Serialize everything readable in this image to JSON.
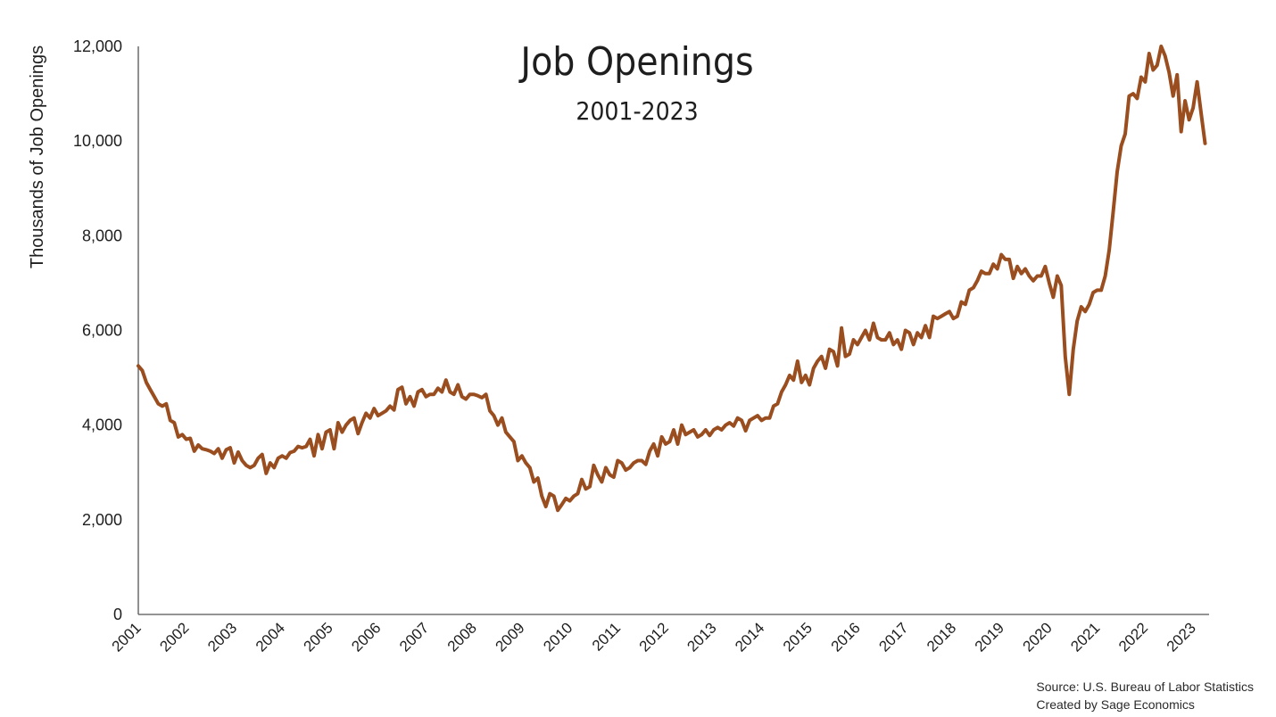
{
  "chart_data": {
    "type": "line",
    "title": "Job Openings",
    "subtitle": "2001-2023",
    "xlabel": "",
    "ylabel": "Thousands of Job Openings",
    "ylim": [
      0,
      12000
    ],
    "xlim": [
      "2001-01",
      "2023-05"
    ],
    "yticks": [
      "0",
      "2,000",
      "4,000",
      "6,000",
      "8,000",
      "10,000",
      "12,000"
    ],
    "xticks": [
      "2001",
      "2002",
      "2003",
      "2004",
      "2005",
      "2006",
      "2007",
      "2008",
      "2009",
      "2010",
      "2011",
      "2012",
      "2013",
      "2014",
      "2015",
      "2016",
      "2017",
      "2018",
      "2019",
      "2020",
      "2021",
      "2022",
      "2023"
    ],
    "grid": false,
    "line_color": "#9a4e1f",
    "series": [
      {
        "name": "",
        "points": [
          [
            "2001-01",
            5250
          ],
          [
            "2001-02",
            5150
          ],
          [
            "2001-03",
            4900
          ],
          [
            "2001-04",
            4750
          ],
          [
            "2001-05",
            4600
          ],
          [
            "2001-06",
            4450
          ],
          [
            "2001-07",
            4400
          ],
          [
            "2001-08",
            4450
          ],
          [
            "2001-09",
            4100
          ],
          [
            "2001-10",
            4050
          ],
          [
            "2001-11",
            3750
          ],
          [
            "2001-12",
            3800
          ],
          [
            "2002-01",
            3700
          ],
          [
            "2002-02",
            3720
          ],
          [
            "2002-03",
            3450
          ],
          [
            "2002-04",
            3580
          ],
          [
            "2002-05",
            3500
          ],
          [
            "2002-06",
            3480
          ],
          [
            "2002-07",
            3450
          ],
          [
            "2002-08",
            3400
          ],
          [
            "2002-09",
            3500
          ],
          [
            "2002-10",
            3300
          ],
          [
            "2002-11",
            3480
          ],
          [
            "2002-12",
            3520
          ],
          [
            "2003-01",
            3200
          ],
          [
            "2003-02",
            3430
          ],
          [
            "2003-03",
            3250
          ],
          [
            "2003-04",
            3150
          ],
          [
            "2003-05",
            3100
          ],
          [
            "2003-06",
            3150
          ],
          [
            "2003-07",
            3300
          ],
          [
            "2003-08",
            3380
          ],
          [
            "2003-09",
            2980
          ],
          [
            "2003-10",
            3200
          ],
          [
            "2003-11",
            3100
          ],
          [
            "2003-12",
            3300
          ],
          [
            "2004-01",
            3350
          ],
          [
            "2004-02",
            3300
          ],
          [
            "2004-03",
            3420
          ],
          [
            "2004-04",
            3450
          ],
          [
            "2004-05",
            3550
          ],
          [
            "2004-06",
            3520
          ],
          [
            "2004-07",
            3550
          ],
          [
            "2004-08",
            3700
          ],
          [
            "2004-09",
            3350
          ],
          [
            "2004-10",
            3800
          ],
          [
            "2004-11",
            3500
          ],
          [
            "2004-12",
            3850
          ],
          [
            "2005-01",
            3900
          ],
          [
            "2005-02",
            3500
          ],
          [
            "2005-03",
            4050
          ],
          [
            "2005-04",
            3850
          ],
          [
            "2005-05",
            4000
          ],
          [
            "2005-06",
            4100
          ],
          [
            "2005-07",
            4150
          ],
          [
            "2005-08",
            3820
          ],
          [
            "2005-09",
            4050
          ],
          [
            "2005-10",
            4250
          ],
          [
            "2005-11",
            4150
          ],
          [
            "2005-12",
            4350
          ],
          [
            "2006-01",
            4200
          ],
          [
            "2006-02",
            4250
          ],
          [
            "2006-03",
            4300
          ],
          [
            "2006-04",
            4400
          ],
          [
            "2006-05",
            4320
          ],
          [
            "2006-06",
            4750
          ],
          [
            "2006-07",
            4800
          ],
          [
            "2006-08",
            4450
          ],
          [
            "2006-09",
            4600
          ],
          [
            "2006-10",
            4400
          ],
          [
            "2006-11",
            4700
          ],
          [
            "2006-12",
            4750
          ],
          [
            "2007-01",
            4600
          ],
          [
            "2007-02",
            4650
          ],
          [
            "2007-03",
            4650
          ],
          [
            "2007-04",
            4780
          ],
          [
            "2007-05",
            4700
          ],
          [
            "2007-06",
            4950
          ],
          [
            "2007-07",
            4700
          ],
          [
            "2007-08",
            4650
          ],
          [
            "2007-09",
            4850
          ],
          [
            "2007-10",
            4600
          ],
          [
            "2007-11",
            4550
          ],
          [
            "2007-12",
            4650
          ],
          [
            "2008-01",
            4650
          ],
          [
            "2008-02",
            4620
          ],
          [
            "2008-03",
            4580
          ],
          [
            "2008-04",
            4650
          ],
          [
            "2008-05",
            4300
          ],
          [
            "2008-06",
            4200
          ],
          [
            "2008-07",
            4000
          ],
          [
            "2008-08",
            4150
          ],
          [
            "2008-09",
            3850
          ],
          [
            "2008-10",
            3750
          ],
          [
            "2008-11",
            3650
          ],
          [
            "2008-12",
            3250
          ],
          [
            "2009-01",
            3350
          ],
          [
            "2009-02",
            3200
          ],
          [
            "2009-03",
            3100
          ],
          [
            "2009-04",
            2800
          ],
          [
            "2009-05",
            2880
          ],
          [
            "2009-06",
            2500
          ],
          [
            "2009-07",
            2280
          ],
          [
            "2009-08",
            2550
          ],
          [
            "2009-09",
            2500
          ],
          [
            "2009-10",
            2200
          ],
          [
            "2009-11",
            2320
          ],
          [
            "2009-12",
            2450
          ],
          [
            "2010-01",
            2400
          ],
          [
            "2010-02",
            2500
          ],
          [
            "2010-03",
            2550
          ],
          [
            "2010-04",
            2850
          ],
          [
            "2010-05",
            2650
          ],
          [
            "2010-06",
            2700
          ],
          [
            "2010-07",
            3150
          ],
          [
            "2010-08",
            2950
          ],
          [
            "2010-09",
            2800
          ],
          [
            "2010-10",
            3100
          ],
          [
            "2010-11",
            2950
          ],
          [
            "2010-12",
            2900
          ],
          [
            "2011-01",
            3250
          ],
          [
            "2011-02",
            3200
          ],
          [
            "2011-03",
            3050
          ],
          [
            "2011-04",
            3100
          ],
          [
            "2011-05",
            3200
          ],
          [
            "2011-06",
            3250
          ],
          [
            "2011-07",
            3250
          ],
          [
            "2011-08",
            3170
          ],
          [
            "2011-09",
            3450
          ],
          [
            "2011-10",
            3600
          ],
          [
            "2011-11",
            3350
          ],
          [
            "2011-12",
            3750
          ],
          [
            "2012-01",
            3600
          ],
          [
            "2012-02",
            3650
          ],
          [
            "2012-03",
            3900
          ],
          [
            "2012-04",
            3600
          ],
          [
            "2012-05",
            4000
          ],
          [
            "2012-06",
            3800
          ],
          [
            "2012-07",
            3850
          ],
          [
            "2012-08",
            3900
          ],
          [
            "2012-09",
            3750
          ],
          [
            "2012-10",
            3800
          ],
          [
            "2012-11",
            3900
          ],
          [
            "2012-12",
            3780
          ],
          [
            "2013-01",
            3900
          ],
          [
            "2013-02",
            3950
          ],
          [
            "2013-03",
            3900
          ],
          [
            "2013-04",
            4000
          ],
          [
            "2013-05",
            4050
          ],
          [
            "2013-06",
            3980
          ],
          [
            "2013-07",
            4150
          ],
          [
            "2013-08",
            4100
          ],
          [
            "2013-09",
            3880
          ],
          [
            "2013-10",
            4100
          ],
          [
            "2013-11",
            4150
          ],
          [
            "2013-12",
            4200
          ],
          [
            "2014-01",
            4100
          ],
          [
            "2014-02",
            4150
          ],
          [
            "2014-03",
            4150
          ],
          [
            "2014-04",
            4400
          ],
          [
            "2014-05",
            4450
          ],
          [
            "2014-06",
            4700
          ],
          [
            "2014-07",
            4850
          ],
          [
            "2014-08",
            5050
          ],
          [
            "2014-09",
            4950
          ],
          [
            "2014-10",
            5350
          ],
          [
            "2014-11",
            4900
          ],
          [
            "2014-12",
            5050
          ],
          [
            "2015-01",
            4850
          ],
          [
            "2015-02",
            5200
          ],
          [
            "2015-03",
            5350
          ],
          [
            "2015-04",
            5450
          ],
          [
            "2015-05",
            5200
          ],
          [
            "2015-06",
            5600
          ],
          [
            "2015-07",
            5550
          ],
          [
            "2015-08",
            5250
          ],
          [
            "2015-09",
            6050
          ],
          [
            "2015-10",
            5450
          ],
          [
            "2015-11",
            5500
          ],
          [
            "2015-12",
            5800
          ],
          [
            "2016-01",
            5700
          ],
          [
            "2016-02",
            5850
          ],
          [
            "2016-03",
            6000
          ],
          [
            "2016-04",
            5800
          ],
          [
            "2016-05",
            6150
          ],
          [
            "2016-06",
            5850
          ],
          [
            "2016-07",
            5800
          ],
          [
            "2016-08",
            5800
          ],
          [
            "2016-09",
            5950
          ],
          [
            "2016-10",
            5700
          ],
          [
            "2016-11",
            5800
          ],
          [
            "2016-12",
            5600
          ],
          [
            "2017-01",
            6000
          ],
          [
            "2017-02",
            5950
          ],
          [
            "2017-03",
            5700
          ],
          [
            "2017-04",
            5950
          ],
          [
            "2017-05",
            5850
          ],
          [
            "2017-06",
            6100
          ],
          [
            "2017-07",
            5850
          ],
          [
            "2017-08",
            6300
          ],
          [
            "2017-09",
            6250
          ],
          [
            "2017-10",
            6300
          ],
          [
            "2017-11",
            6350
          ],
          [
            "2017-12",
            6400
          ],
          [
            "2018-01",
            6250
          ],
          [
            "2018-02",
            6300
          ],
          [
            "2018-03",
            6600
          ],
          [
            "2018-04",
            6550
          ],
          [
            "2018-05",
            6850
          ],
          [
            "2018-06",
            6900
          ],
          [
            "2018-07",
            7050
          ],
          [
            "2018-08",
            7250
          ],
          [
            "2018-09",
            7200
          ],
          [
            "2018-10",
            7200
          ],
          [
            "2018-11",
            7400
          ],
          [
            "2018-12",
            7300
          ],
          [
            "2019-01",
            7600
          ],
          [
            "2019-02",
            7500
          ],
          [
            "2019-03",
            7500
          ],
          [
            "2019-04",
            7100
          ],
          [
            "2019-05",
            7350
          ],
          [
            "2019-06",
            7200
          ],
          [
            "2019-07",
            7300
          ],
          [
            "2019-08",
            7150
          ],
          [
            "2019-09",
            7050
          ],
          [
            "2019-10",
            7150
          ],
          [
            "2019-11",
            7150
          ],
          [
            "2019-12",
            7350
          ],
          [
            "2020-01",
            7000
          ],
          [
            "2020-02",
            6700
          ],
          [
            "2020-03",
            7150
          ],
          [
            "2020-04",
            6950
          ],
          [
            "2020-05",
            5450
          ],
          [
            "2020-06",
            4650
          ],
          [
            "2020-07",
            5600
          ],
          [
            "2020-08",
            6200
          ],
          [
            "2020-09",
            6500
          ],
          [
            "2020-10",
            6400
          ],
          [
            "2020-11",
            6550
          ],
          [
            "2020-12",
            6800
          ],
          [
            "2021-01",
            6850
          ],
          [
            "2021-02",
            6850
          ],
          [
            "2021-03",
            7150
          ],
          [
            "2021-04",
            7700
          ],
          [
            "2021-05",
            8500
          ],
          [
            "2021-06",
            9350
          ],
          [
            "2021-07",
            9900
          ],
          [
            "2021-08",
            10150
          ],
          [
            "2021-09",
            10950
          ],
          [
            "2021-10",
            11000
          ],
          [
            "2021-11",
            10900
          ],
          [
            "2021-12",
            11350
          ],
          [
            "2022-01",
            11250
          ],
          [
            "2022-02",
            11850
          ],
          [
            "2022-03",
            11500
          ],
          [
            "2022-04",
            11600
          ],
          [
            "2022-05",
            12000
          ],
          [
            "2022-06",
            11800
          ],
          [
            "2022-07",
            11450
          ],
          [
            "2022-08",
            10950
          ],
          [
            "2022-09",
            11400
          ],
          [
            "2022-10",
            10200
          ],
          [
            "2022-11",
            10850
          ],
          [
            "2022-12",
            10450
          ],
          [
            "2023-01",
            10700
          ],
          [
            "2023-02",
            11250
          ],
          [
            "2023-03",
            10600
          ],
          [
            "2023-04",
            9950
          ]
        ]
      }
    ]
  },
  "footer": {
    "source": "Source: U.S. Bureau of Labor Statistics",
    "credit": "Created by Sage Economics"
  }
}
